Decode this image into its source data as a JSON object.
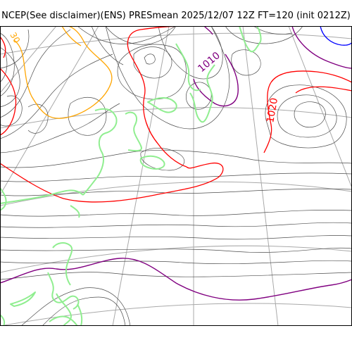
{
  "title": "NCEP(See disclaimer)(ENS) PRESmean 2025/12/07 12Z FT=120 (init 0212Z)",
  "colors": {
    "isobar_thin": "#4d4d4d",
    "isobar_1020": "#ff0000",
    "isobar_1010": "#800080",
    "isobar_low": "#0000ff",
    "isobar_1030": "#ffa500",
    "coastline": "#90ee90",
    "graticule": "#a9a9a9"
  },
  "contour_labels": [
    {
      "text": "1010",
      "color_key": "isobar_1010"
    },
    {
      "text": "1020",
      "color_key": "isobar_1020"
    },
    {
      "text": "30",
      "color_key": "isobar_1030"
    }
  ]
}
